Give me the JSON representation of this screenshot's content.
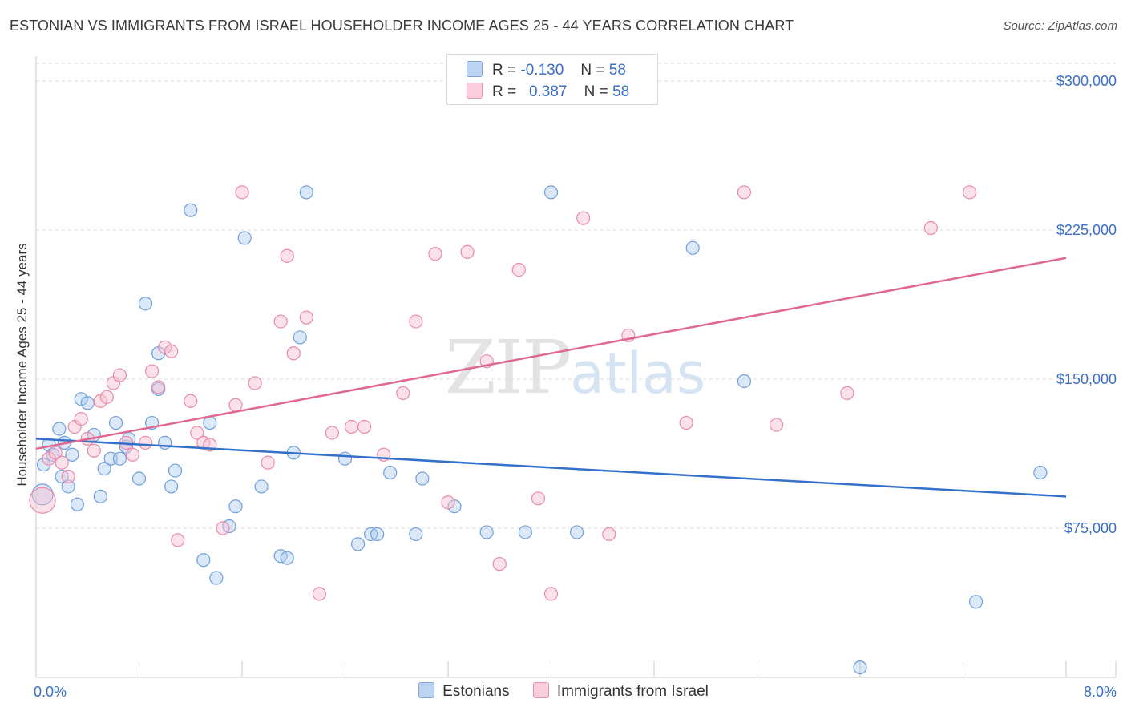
{
  "title": "ESTONIAN VS IMMIGRANTS FROM ISRAEL HOUSEHOLDER INCOME AGES 25 - 44 YEARS CORRELATION CHART",
  "source": "Source: ZipAtlas.com",
  "watermark": {
    "zip": "ZIP",
    "atlas": "atlas"
  },
  "legend": {
    "rows": [
      {
        "r_label": "R =",
        "r_value": "-0.130",
        "n_label": "N =",
        "n_value": "58"
      },
      {
        "r_label": "R =",
        "r_value": "0.387",
        "n_label": "N =",
        "n_value": "58"
      }
    ]
  },
  "colors": {
    "estonians_fill": "#aecbef",
    "estonians_stroke": "#6f9fdc",
    "estonians_line": "#3270cc",
    "israel_fill": "#f7bfd0",
    "israel_stroke": "#e88aa8",
    "israel_line": "#e06890",
    "axis_label": "#3a6fc4",
    "grid": "#dddddd"
  },
  "chart_data": {
    "type": "scatter",
    "title": "ESTONIAN VS IMMIGRANTS FROM ISRAEL HOUSEHOLDER INCOME AGES 25 - 44 YEARS CORRELATION CHART",
    "xlabel": "",
    "ylabel": "Householder Income Ages 25 - 44 years",
    "xlim": [
      0,
      8
    ],
    "ylim": [
      0,
      312500
    ],
    "x_tick_labels": [
      "0.0%",
      "8.0%"
    ],
    "y_ticks": [
      75000,
      150000,
      225000,
      300000
    ],
    "y_tick_labels": [
      "$75,000",
      "$150,000",
      "$225,000",
      "$300,000"
    ],
    "grid": true,
    "legend_position": "top-center",
    "series": [
      {
        "name": "Estonians",
        "r": -0.13,
        "n": 58,
        "trend": {
          "x": [
            0.0,
            8.0
          ],
          "y": [
            120000,
            91000
          ]
        },
        "points": [
          [
            0.05,
            92000
          ],
          [
            0.06,
            107000
          ],
          [
            0.1,
            117000
          ],
          [
            0.13,
            112000
          ],
          [
            0.18,
            125000
          ],
          [
            0.2,
            101000
          ],
          [
            0.22,
            118000
          ],
          [
            0.25,
            96000
          ],
          [
            0.28,
            112000
          ],
          [
            0.32,
            87000
          ],
          [
            0.35,
            140000
          ],
          [
            0.4,
            138000
          ],
          [
            0.45,
            122000
          ],
          [
            0.5,
            91000
          ],
          [
            0.53,
            105000
          ],
          [
            0.58,
            110000
          ],
          [
            0.62,
            128000
          ],
          [
            0.65,
            110000
          ],
          [
            0.7,
            116000
          ],
          [
            0.72,
            120000
          ],
          [
            0.8,
            100000
          ],
          [
            0.85,
            188000
          ],
          [
            0.9,
            128000
          ],
          [
            0.95,
            163000
          ],
          [
            1.0,
            118000
          ],
          [
            1.05,
            96000
          ],
          [
            1.08,
            104000
          ],
          [
            1.2,
            235000
          ],
          [
            1.3,
            59000
          ],
          [
            1.35,
            128000
          ],
          [
            1.4,
            50000
          ],
          [
            1.5,
            76000
          ],
          [
            1.55,
            86000
          ],
          [
            1.62,
            221000
          ],
          [
            1.75,
            96000
          ],
          [
            1.9,
            61000
          ],
          [
            2.0,
            113000
          ],
          [
            2.05,
            171000
          ],
          [
            2.1,
            244000
          ],
          [
            2.4,
            110000
          ],
          [
            2.5,
            67000
          ],
          [
            2.6,
            72000
          ],
          [
            2.65,
            72000
          ],
          [
            2.75,
            103000
          ],
          [
            2.95,
            72000
          ],
          [
            3.0,
            100000
          ],
          [
            3.25,
            86000
          ],
          [
            3.5,
            73000
          ],
          [
            3.8,
            73000
          ],
          [
            4.0,
            244000
          ],
          [
            4.2,
            73000
          ],
          [
            5.1,
            216000
          ],
          [
            5.5,
            149000
          ],
          [
            6.4,
            5000
          ],
          [
            7.3,
            38000
          ],
          [
            7.8,
            103000
          ],
          [
            1.95,
            60000
          ],
          [
            0.95,
            145000
          ]
        ]
      },
      {
        "name": "Immigrants from Israel",
        "r": 0.387,
        "n": 58,
        "trend": {
          "x": [
            0.0,
            8.0
          ],
          "y": [
            115000,
            211000
          ]
        },
        "points": [
          [
            0.05,
            89000
          ],
          [
            0.1,
            110000
          ],
          [
            0.15,
            113000
          ],
          [
            0.2,
            108000
          ],
          [
            0.25,
            101000
          ],
          [
            0.3,
            126000
          ],
          [
            0.35,
            130000
          ],
          [
            0.4,
            120000
          ],
          [
            0.45,
            114000
          ],
          [
            0.5,
            139000
          ],
          [
            0.55,
            141000
          ],
          [
            0.6,
            148000
          ],
          [
            0.65,
            152000
          ],
          [
            0.7,
            118000
          ],
          [
            0.75,
            112000
          ],
          [
            0.85,
            118000
          ],
          [
            0.9,
            154000
          ],
          [
            0.95,
            146000
          ],
          [
            1.0,
            166000
          ],
          [
            1.05,
            164000
          ],
          [
            1.1,
            69000
          ],
          [
            1.2,
            139000
          ],
          [
            1.25,
            123000
          ],
          [
            1.3,
            118000
          ],
          [
            1.35,
            117000
          ],
          [
            1.45,
            75000
          ],
          [
            1.55,
            137000
          ],
          [
            1.6,
            244000
          ],
          [
            1.7,
            148000
          ],
          [
            1.8,
            108000
          ],
          [
            1.9,
            179000
          ],
          [
            1.95,
            212000
          ],
          [
            2.0,
            163000
          ],
          [
            2.1,
            181000
          ],
          [
            2.2,
            42000
          ],
          [
            2.3,
            123000
          ],
          [
            2.45,
            126000
          ],
          [
            2.55,
            126000
          ],
          [
            2.7,
            112000
          ],
          [
            2.85,
            143000
          ],
          [
            2.95,
            179000
          ],
          [
            3.1,
            213000
          ],
          [
            3.2,
            88000
          ],
          [
            3.35,
            214000
          ],
          [
            3.5,
            159000
          ],
          [
            3.6,
            57000
          ],
          [
            3.75,
            205000
          ],
          [
            3.9,
            90000
          ],
          [
            4.0,
            42000
          ],
          [
            4.25,
            231000
          ],
          [
            4.45,
            72000
          ],
          [
            4.6,
            172000
          ],
          [
            5.05,
            128000
          ],
          [
            5.5,
            244000
          ],
          [
            5.75,
            127000
          ],
          [
            6.3,
            143000
          ],
          [
            6.95,
            226000
          ],
          [
            7.25,
            244000
          ]
        ]
      }
    ]
  },
  "bottom_legend": [
    "Estonians",
    "Immigrants from Israel"
  ]
}
